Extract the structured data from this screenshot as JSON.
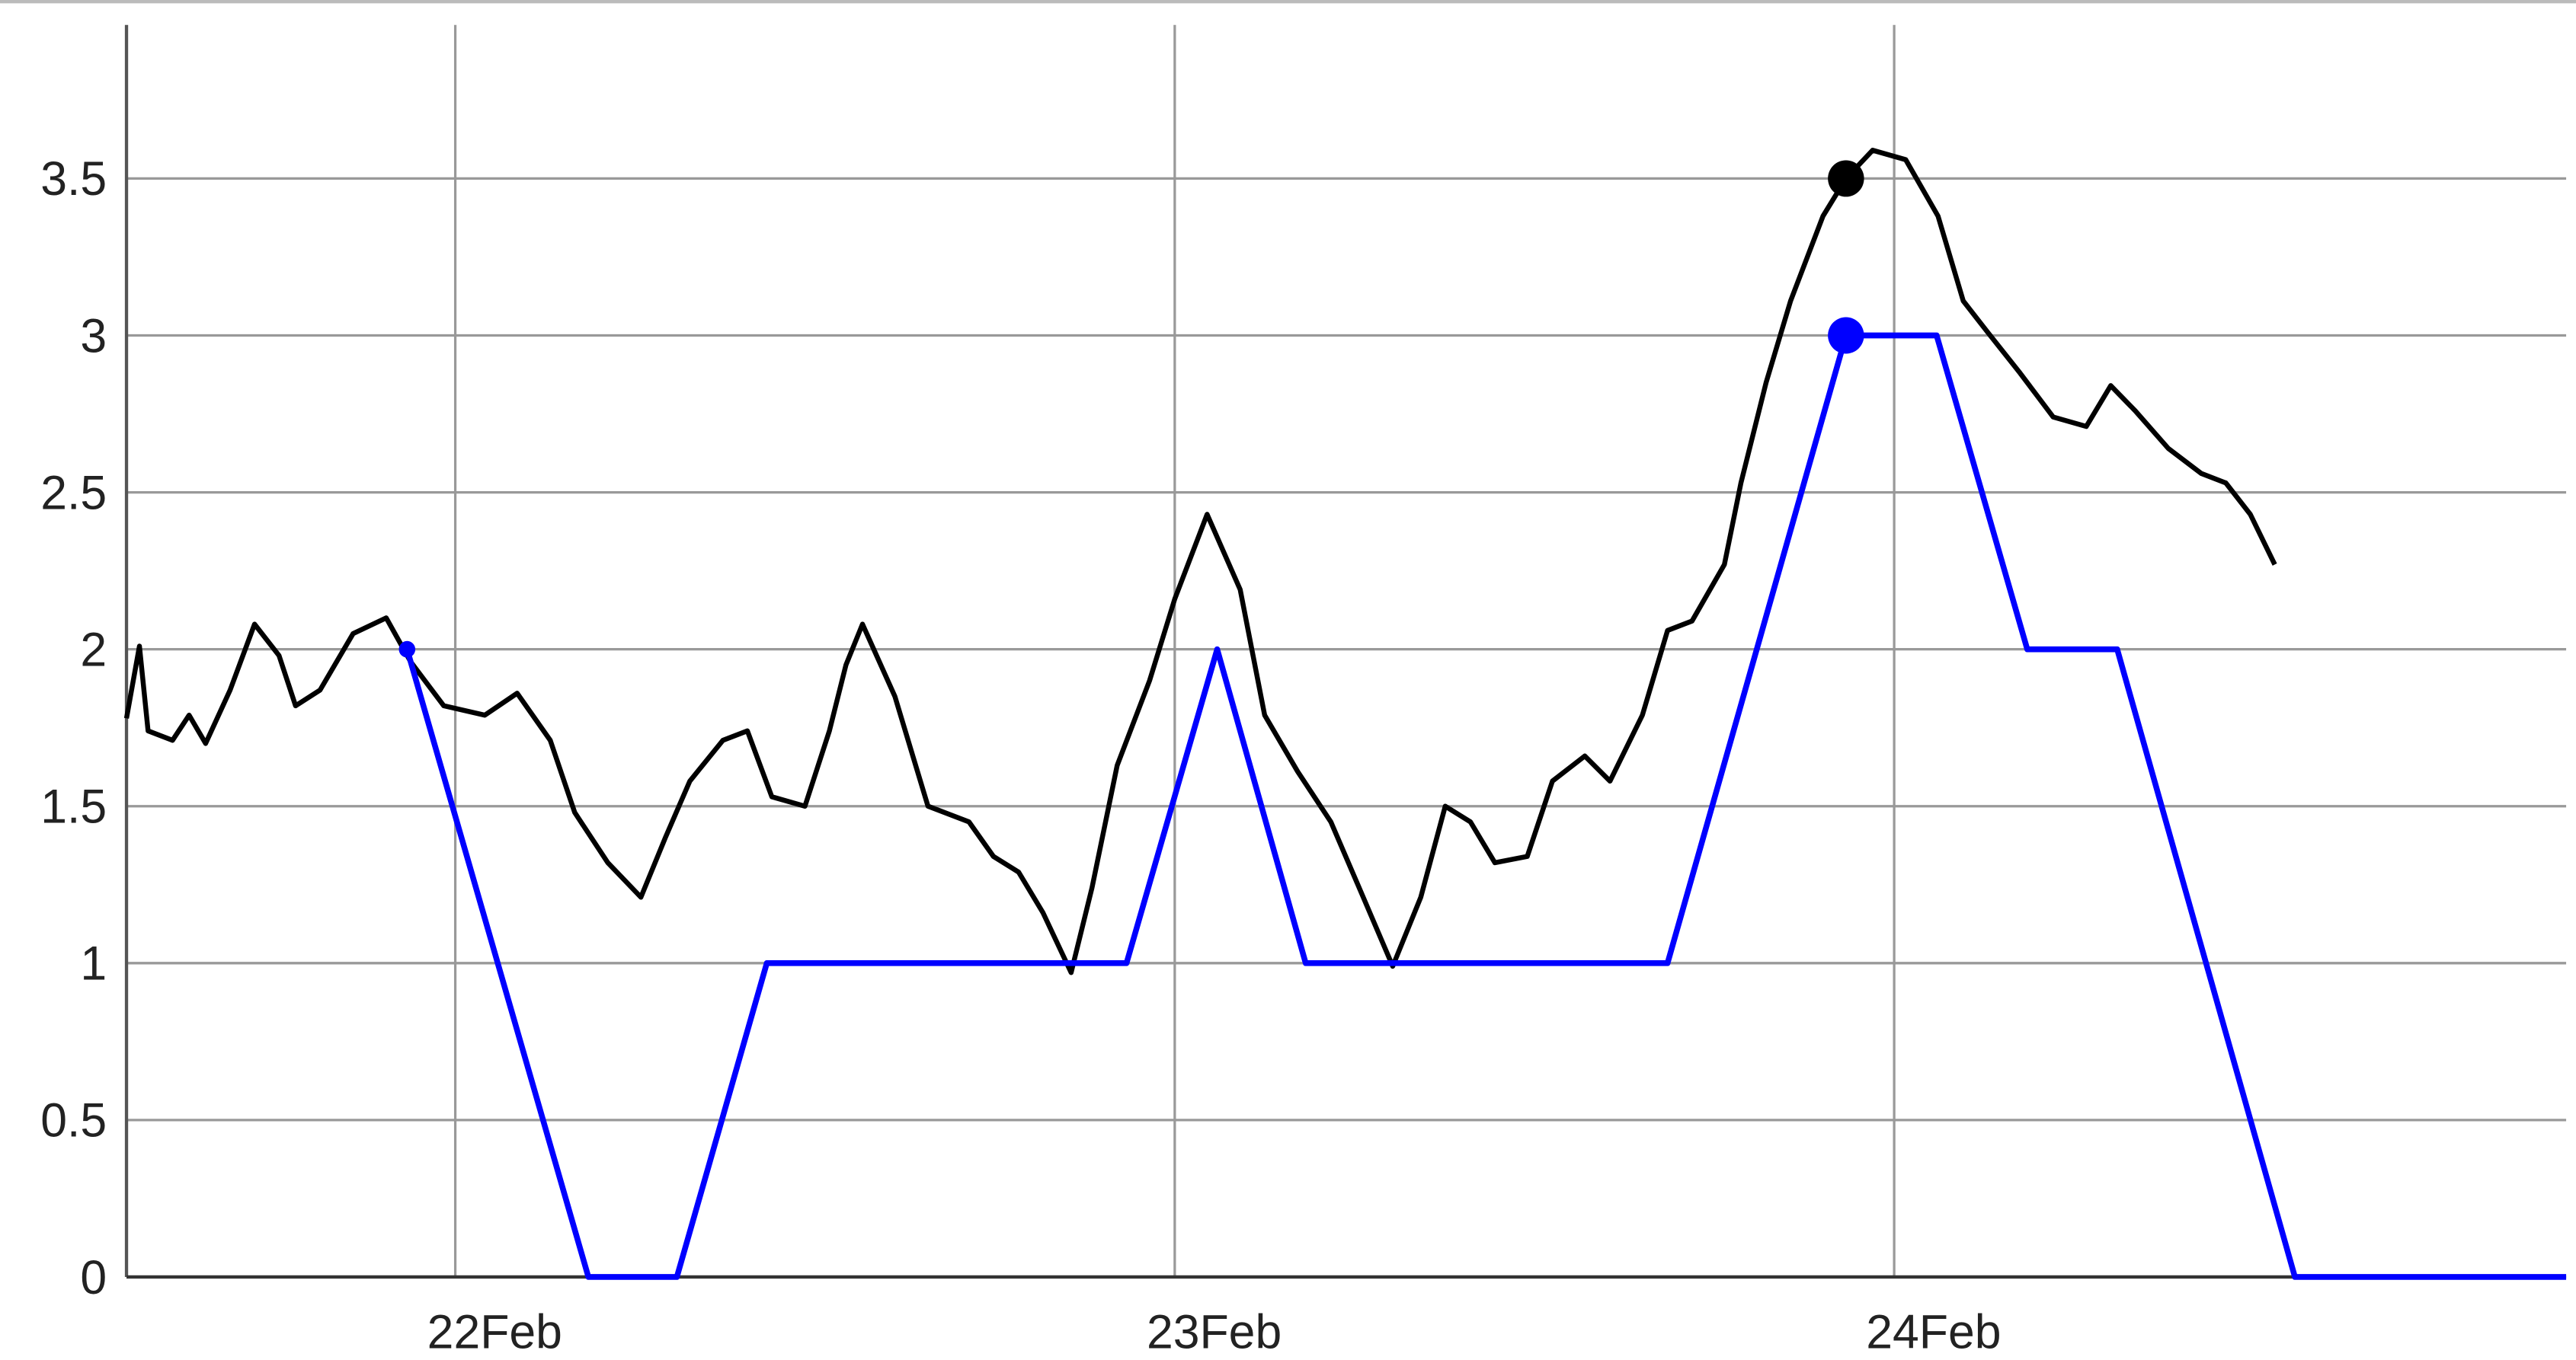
{
  "chart_data": {
    "type": "line",
    "xlim": [
      21.543,
      24.934
    ],
    "xticks": [
      {
        "value": 22,
        "label": "22Feb"
      },
      {
        "value": 23,
        "label": "23Feb"
      },
      {
        "value": 24,
        "label": "24Feb"
      }
    ],
    "ylim": [
      0,
      4
    ],
    "yticks": [
      0,
      0.5,
      1,
      1.5,
      2,
      2.5,
      3,
      3.5
    ],
    "grid": true,
    "series": [
      {
        "color": "#000000",
        "x": [
          21.543,
          21.561,
          21.573,
          21.607,
          21.63,
          21.653,
          21.687,
          21.721,
          21.755,
          21.778,
          21.812,
          21.858,
          21.904,
          21.938,
          21.984,
          22.041,
          22.086,
          22.132,
          22.166,
          22.212,
          22.258,
          22.292,
          22.326,
          22.372,
          22.406,
          22.44,
          22.486,
          22.52,
          22.543,
          22.566,
          22.611,
          22.657,
          22.714,
          22.748,
          22.783,
          22.817,
          22.856,
          22.885,
          22.92,
          22.965,
          23.0,
          23.045,
          23.091,
          23.125,
          23.171,
          23.217,
          23.262,
          23.303,
          23.342,
          23.376,
          23.411,
          23.445,
          23.49,
          23.525,
          23.57,
          23.605,
          23.65,
          23.685,
          23.719,
          23.764,
          23.787,
          23.822,
          23.856,
          23.901,
          23.933,
          23.97,
          24.016,
          24.061,
          24.096,
          24.13,
          24.175,
          24.221,
          24.267,
          24.301,
          24.335,
          24.381,
          24.427,
          24.461,
          24.495,
          24.529
        ],
        "values": [
          1.78,
          2.01,
          1.74,
          1.71,
          1.79,
          1.7,
          1.87,
          2.08,
          1.98,
          1.82,
          1.87,
          2.05,
          2.1,
          1.96,
          1.82,
          1.79,
          1.86,
          1.71,
          1.48,
          1.32,
          1.21,
          1.4,
          1.58,
          1.71,
          1.74,
          1.53,
          1.5,
          1.74,
          1.95,
          2.08,
          1.85,
          1.5,
          1.45,
          1.34,
          1.29,
          1.16,
          0.97,
          1.24,
          1.63,
          1.9,
          2.16,
          2.43,
          2.19,
          1.79,
          1.61,
          1.45,
          1.21,
          0.99,
          1.21,
          1.5,
          1.45,
          1.32,
          1.34,
          1.58,
          1.66,
          1.58,
          1.79,
          2.06,
          2.09,
          2.27,
          2.53,
          2.85,
          3.11,
          3.38,
          3.5,
          3.59,
          3.56,
          3.38,
          3.11,
          3.01,
          2.88,
          2.74,
          2.71,
          2.84,
          2.76,
          2.64,
          2.56,
          2.53,
          2.43,
          2.27
        ]
      },
      {
        "color": "#0000ff",
        "x": [
          21.933,
          22.185,
          22.308,
          22.433,
          22.933,
          23.059,
          23.182,
          23.685,
          23.933,
          24.059,
          24.185,
          24.31,
          24.557,
          24.934
        ],
        "values": [
          2,
          0,
          0,
          1,
          1,
          2,
          1,
          1,
          3,
          3,
          2,
          2,
          0,
          0
        ]
      }
    ],
    "points": [
      {
        "x": 23.933,
        "y": 3.5,
        "color": "#000000"
      },
      {
        "x": 23.933,
        "y": 3,
        "color": "#0000ff"
      },
      {
        "x": 21.933,
        "y": 2,
        "color": "#0000ff"
      }
    ]
  }
}
